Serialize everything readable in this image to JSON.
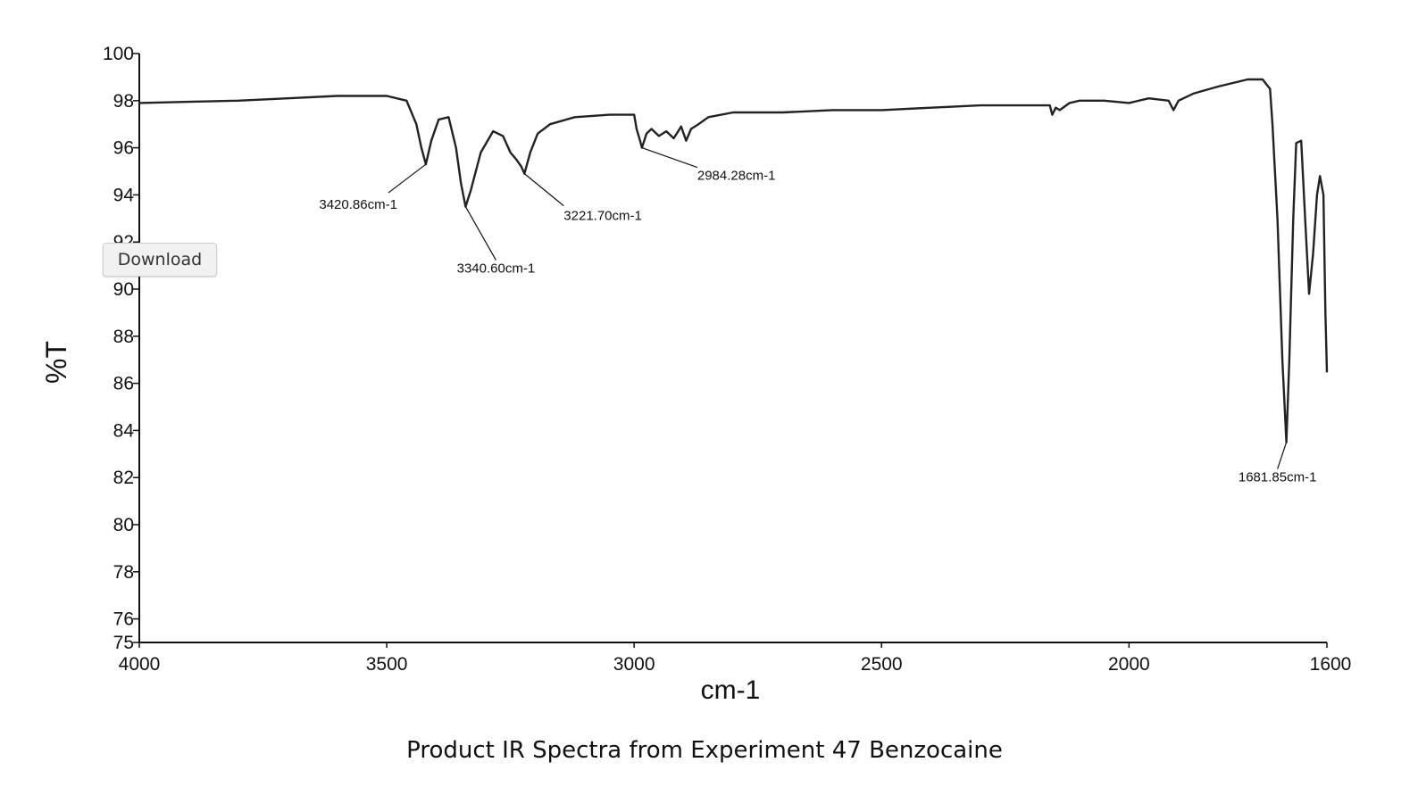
{
  "caption": "Product IR Spectra from Experiment 47 Benzocaine",
  "download_label": "Download",
  "chart_data": {
    "type": "line",
    "xlabel": "cm-1",
    "ylabel": "%T",
    "xlim": [
      4000,
      1600
    ],
    "ylim": [
      75,
      100
    ],
    "x_reversed": true,
    "grid": false,
    "line_color": "#222222",
    "x_ticks": [
      "4000",
      "3500",
      "3000",
      "2500",
      "2000",
      "1600"
    ],
    "y_ticks": [
      "75",
      "76",
      "78",
      "80",
      "82",
      "84",
      "86",
      "88",
      "90",
      "92",
      "94",
      "96",
      "98",
      "100"
    ],
    "series": [
      {
        "x": [
          4000,
          3900,
          3800,
          3700,
          3600,
          3500,
          3460,
          3440,
          3430,
          3420.86,
          3410,
          3395,
          3375,
          3360,
          3350,
          3340.6,
          3330,
          3310,
          3285,
          3265,
          3250,
          3238,
          3228,
          3221.7,
          3210,
          3195,
          3170,
          3120,
          3050,
          3000,
          2995,
          2988,
          2984.28,
          2975,
          2965,
          2950,
          2935,
          2920,
          2905,
          2895,
          2885,
          2870,
          2850,
          2800,
          2700,
          2600,
          2500,
          2400,
          2300,
          2200,
          2160,
          2155,
          2148,
          2140,
          2120,
          2100,
          2050,
          2000,
          1960,
          1920,
          1910,
          1900,
          1870,
          1820,
          1760,
          1730,
          1715,
          1710,
          1700,
          1690,
          1681.85,
          1676,
          1668,
          1662,
          1652,
          1644,
          1636,
          1628,
          1620,
          1614,
          1607,
          1603,
          1600
        ],
        "y": [
          97.9,
          97.95,
          98.0,
          98.1,
          98.2,
          98.2,
          98.0,
          97.0,
          96.0,
          95.3,
          96.3,
          97.2,
          97.3,
          96.0,
          94.5,
          93.5,
          94.2,
          95.8,
          96.7,
          96.5,
          95.8,
          95.5,
          95.2,
          94.9,
          95.8,
          96.6,
          97.0,
          97.3,
          97.4,
          97.4,
          96.8,
          96.3,
          96.0,
          96.6,
          96.8,
          96.5,
          96.7,
          96.4,
          96.9,
          96.3,
          96.8,
          97.0,
          97.3,
          97.5,
          97.5,
          97.6,
          97.6,
          97.7,
          97.8,
          97.8,
          97.8,
          97.4,
          97.7,
          97.6,
          97.9,
          98.0,
          98.0,
          97.9,
          98.1,
          98.0,
          97.6,
          98.0,
          98.3,
          98.6,
          98.9,
          98.9,
          98.5,
          97.0,
          93.0,
          87.0,
          83.5,
          87.0,
          93.0,
          96.2,
          96.3,
          93.0,
          89.8,
          91.5,
          94.0,
          94.8,
          94.0,
          89.0,
          86.5
        ]
      }
    ],
    "annotations": [
      {
        "text": "3420.86cm-1",
        "x": 3420.86,
        "y": 95.3
      },
      {
        "text": "3340.60cm-1",
        "x": 3340.6,
        "y": 93.5
      },
      {
        "text": "3221.70cm-1",
        "x": 3221.7,
        "y": 94.9
      },
      {
        "text": "2984.28cm-1",
        "x": 2984.28,
        "y": 96.0
      },
      {
        "text": "1681.85cm-1",
        "x": 1681.85,
        "y": 83.5
      }
    ]
  }
}
